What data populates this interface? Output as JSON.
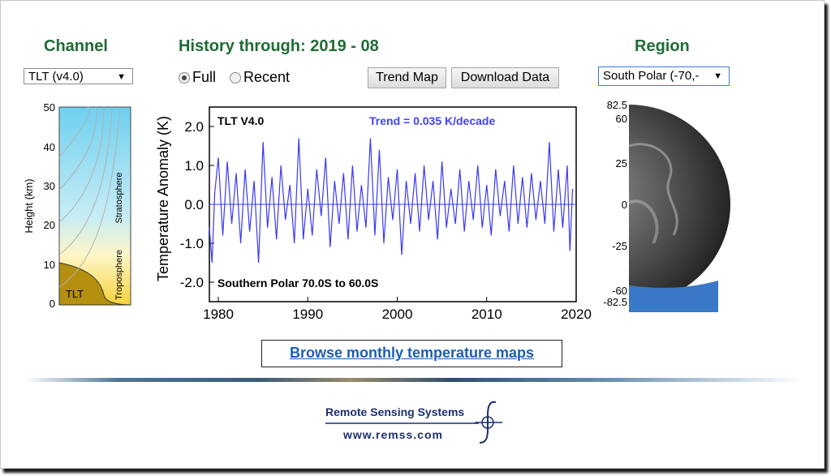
{
  "channel": {
    "heading": "Channel",
    "selected": "TLT (v4.0)",
    "diagram": {
      "y_label": "Height  (km)",
      "y_ticks": [
        "50",
        "40",
        "30",
        "20",
        "10",
        "0"
      ],
      "stratosphere_label": "Stratosphere",
      "troposphere_label": "Troposphere",
      "channel_label": "TLT"
    }
  },
  "history": {
    "heading": "History through: 2019 - 08",
    "range_options": [
      {
        "label": "Full",
        "selected": true
      },
      {
        "label": "Recent",
        "selected": false
      }
    ],
    "trend_map_button": "Trend Map",
    "download_button": "Download Data"
  },
  "region": {
    "heading": "Region",
    "selected": "South Polar (-70,-",
    "lat_labels": [
      "82.5",
      "60",
      "25",
      "0",
      "-25",
      "-60",
      "-82.5"
    ]
  },
  "chart_data": {
    "type": "line",
    "title": "TLT V4.0",
    "trend_text": "Trend =  0.035 K/decade",
    "region_text": "Southern Polar  70.0S to 60.0S",
    "ylabel": "Temperature Anomaly (K)",
    "xlabel": "",
    "xlim": [
      1979,
      2020
    ],
    "ylim": [
      -2.5,
      2.5
    ],
    "x_ticks": [
      "1980",
      "1990",
      "2000",
      "2010",
      "2020"
    ],
    "y_ticks": [
      "2.0",
      "1.0",
      "0.0",
      "-1.0",
      "-2.0"
    ],
    "series": [
      {
        "color": "#3a3af0",
        "x": [
          1979.0,
          1979.3,
          1979.6,
          1980.0,
          1980.5,
          1981.0,
          1981.5,
          1982.0,
          1982.5,
          1983.0,
          1983.5,
          1984.0,
          1984.5,
          1985.0,
          1985.5,
          1986.0,
          1986.5,
          1987.0,
          1987.5,
          1988.0,
          1988.5,
          1989.0,
          1989.5,
          1990.0,
          1990.5,
          1991.0,
          1991.5,
          1992.0,
          1992.5,
          1993.0,
          1993.5,
          1994.0,
          1994.5,
          1995.0,
          1995.5,
          1996.0,
          1996.5,
          1997.0,
          1997.5,
          1998.0,
          1998.5,
          1999.0,
          1999.5,
          2000.0,
          2000.5,
          2001.0,
          2001.5,
          2002.0,
          2002.5,
          2003.0,
          2003.5,
          2004.0,
          2004.5,
          2005.0,
          2005.5,
          2006.0,
          2006.5,
          2007.0,
          2007.5,
          2008.0,
          2008.5,
          2009.0,
          2009.5,
          2010.0,
          2010.5,
          2011.0,
          2011.5,
          2012.0,
          2012.5,
          2013.0,
          2013.5,
          2014.0,
          2014.5,
          2015.0,
          2015.5,
          2016.0,
          2016.5,
          2017.0,
          2017.5,
          2018.0,
          2018.5,
          2019.0,
          2019.3,
          2019.6
        ],
        "y": [
          -0.6,
          -1.5,
          0.3,
          1.2,
          -0.8,
          1.1,
          -0.5,
          0.8,
          -1.0,
          0.9,
          -0.7,
          0.6,
          -1.5,
          1.6,
          -0.6,
          0.7,
          -0.9,
          1.0,
          -0.4,
          0.5,
          -1.0,
          1.7,
          -0.9,
          0.4,
          -0.8,
          0.9,
          -0.3,
          1.2,
          -1.1,
          0.6,
          -0.5,
          0.8,
          -0.9,
          1.0,
          -0.7,
          0.5,
          -0.6,
          1.7,
          -0.8,
          1.4,
          -1.0,
          0.7,
          -0.4,
          0.9,
          -1.3,
          0.6,
          -0.5,
          0.8,
          -0.7,
          1.0,
          -0.4,
          0.6,
          -0.9,
          1.1,
          -0.6,
          0.4,
          -0.5,
          0.9,
          -0.7,
          0.6,
          -0.4,
          1.0,
          -0.6,
          0.5,
          -0.8,
          0.9,
          -0.3,
          0.6,
          -0.7,
          1.0,
          -0.5,
          0.7,
          -0.6,
          0.8,
          -0.4,
          0.6,
          -0.5,
          1.6,
          -0.7,
          0.9,
          -0.6,
          1.0,
          -1.2,
          0.4
        ]
      }
    ]
  },
  "browse_link": "Browse monthly temperature maps",
  "logo": {
    "name": "Remote Sensing Systems",
    "url": "www.remss.com"
  }
}
